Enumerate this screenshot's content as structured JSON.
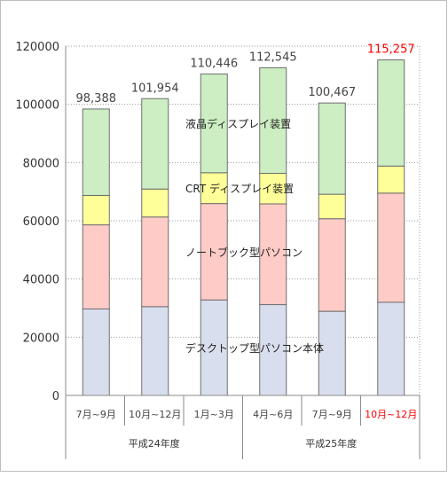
{
  "chart_data": {
    "type": "bar",
    "stacked": true,
    "categories": [
      "7月~9月",
      "10月~12月",
      "1月~3月",
      "4月~6月",
      "7月~9月",
      "10月~12月"
    ],
    "highlight_category_index": 5,
    "groups": [
      {
        "label": "平成24年度",
        "start": 0,
        "end": 3
      },
      {
        "label": "平成25年度",
        "start": 3,
        "end": 6
      }
    ],
    "totals": [
      "98,388",
      "101,954",
      "110,446",
      "112,545",
      "100,467",
      "115,257"
    ],
    "series": [
      {
        "name": "デスクトップ型パソコン本体",
        "color": "#d9deee",
        "values": [
          29700,
          30500,
          32800,
          31200,
          28900,
          32000
        ]
      },
      {
        "name": "ノートブック型パソコン",
        "color": "#ffcbc6",
        "values": [
          28900,
          30800,
          33100,
          34600,
          31800,
          37500
        ]
      },
      {
        "name": "CRT ディスプレイ装置",
        "color": "#ffff99",
        "values": [
          10100,
          9600,
          10600,
          10500,
          8400,
          9300
        ]
      },
      {
        "name": "液晶ディスプレイ装置",
        "color": "#cceec2",
        "values": [
          29688,
          31054,
          33946,
          36245,
          31367,
          36457
        ]
      }
    ],
    "yticks": [
      "0",
      "20000",
      "40000",
      "60000",
      "80000",
      "100000",
      "120000"
    ],
    "ylim": [
      0,
      120000
    ],
    "highlight_color": "#ff0000"
  }
}
